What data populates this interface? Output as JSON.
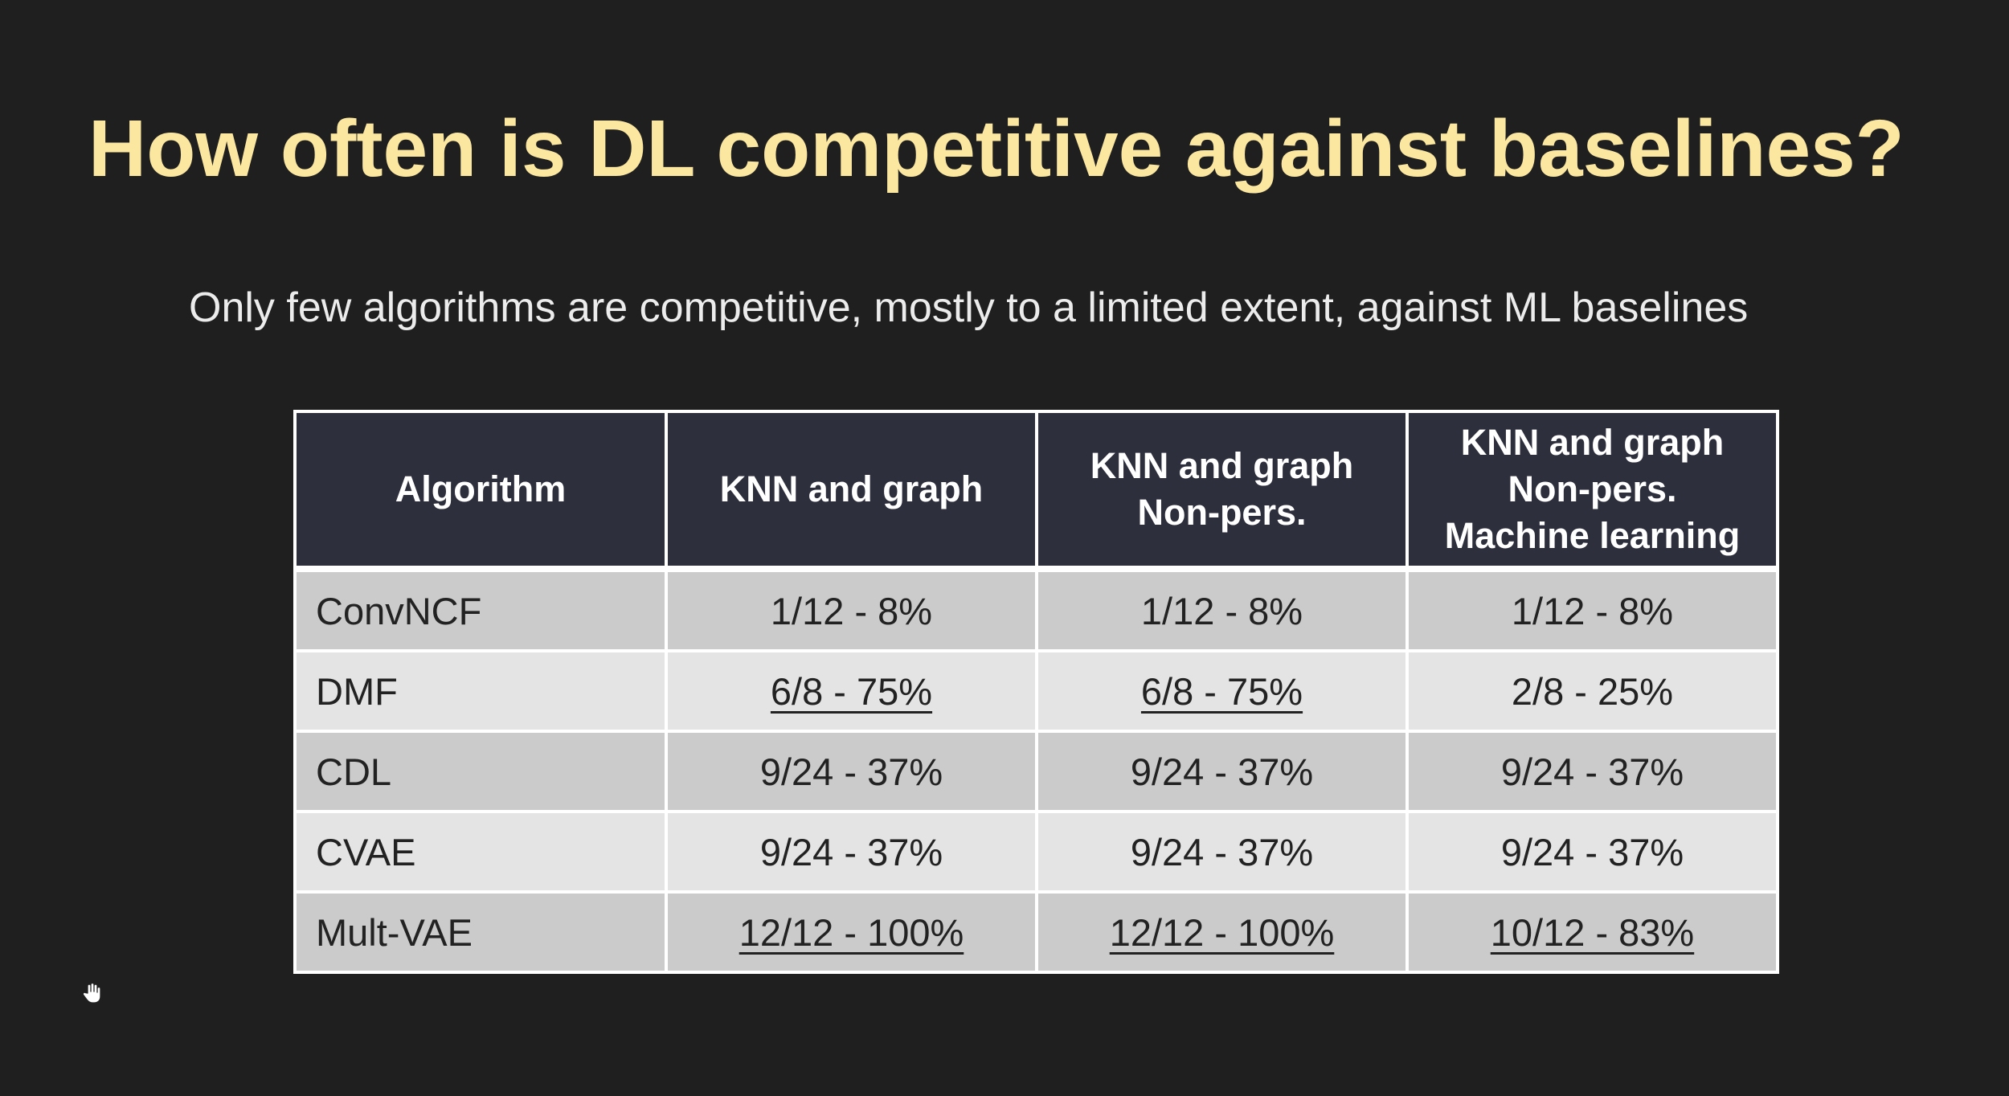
{
  "slide": {
    "title": "How often is DL competitive against baselines?",
    "subtitle": "Only few algorithms are competitive, mostly to a limited extent, against ML baselines"
  },
  "table": {
    "headers": [
      [
        "Algorithm"
      ],
      [
        "KNN and graph"
      ],
      [
        "KNN and graph",
        "Non-pers."
      ],
      [
        "KNN and graph",
        "Non-pers.",
        "Machine learning"
      ]
    ],
    "rows": [
      {
        "algorithm": "ConvNCF",
        "cells": [
          {
            "text": "1/12 - 8%",
            "underline": false
          },
          {
            "text": "1/12 - 8%",
            "underline": false
          },
          {
            "text": "1/12 - 8%",
            "underline": false
          }
        ]
      },
      {
        "algorithm": "DMF",
        "cells": [
          {
            "text": "6/8 - 75%",
            "underline": true
          },
          {
            "text": "6/8 - 75%",
            "underline": true
          },
          {
            "text": "2/8 - 25%",
            "underline": false
          }
        ]
      },
      {
        "algorithm": "CDL",
        "cells": [
          {
            "text": "9/24 - 37%",
            "underline": false
          },
          {
            "text": "9/24 - 37%",
            "underline": false
          },
          {
            "text": "9/24 - 37%",
            "underline": false
          }
        ]
      },
      {
        "algorithm": "CVAE",
        "cells": [
          {
            "text": "9/24 - 37%",
            "underline": false
          },
          {
            "text": "9/24 - 37%",
            "underline": false
          },
          {
            "text": "9/24 - 37%",
            "underline": false
          }
        ]
      },
      {
        "algorithm": "Mult-VAE",
        "cells": [
          {
            "text": "12/12 - 100%",
            "underline": true
          },
          {
            "text": "12/12 - 100%",
            "underline": true
          },
          {
            "text": "10/12 - 83%",
            "underline": true
          }
        ]
      }
    ]
  },
  "colors": {
    "background": "#1f1f20",
    "title": "#fbe7a0",
    "header_bg": "#2e2f3d",
    "row_dark": "#cbcbcb",
    "row_light": "#e4e4e4"
  },
  "icons": {
    "cursor": "hand-cursor-icon"
  }
}
